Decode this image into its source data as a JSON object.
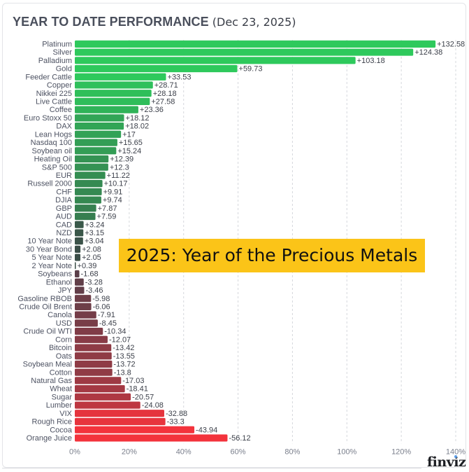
{
  "header": {
    "title": "YEAR TO DATE PERFORMANCE",
    "date": "(Dec 23, 2025)"
  },
  "banner": {
    "text": "2025: Year of the Precious Metals",
    "color": "#fbc418"
  },
  "branding": {
    "logo": "finviz"
  },
  "colors": {
    "positive_strong": "#2ec95c",
    "positive_weak": "#3b4e48",
    "negative_weak": "#5b3f4a",
    "negative_strong": "#f3333c"
  },
  "chart_data": {
    "type": "bar",
    "orientation": "horizontal",
    "title": "YEAR TO DATE PERFORMANCE (Dec 23, 2025)",
    "xlabel": "",
    "ylabel": "",
    "xlim": [
      0,
      140
    ],
    "x_ticks": [
      "0%",
      "20%",
      "40%",
      "60%",
      "80%",
      "100%",
      "120%",
      "140%"
    ],
    "grid": "vertical dashed",
    "value_note": "bar length = absolute YTD % change; labels show signed value",
    "categories": [
      "Platinum",
      "Silver",
      "Palladium",
      "Gold",
      "Feeder Cattle",
      "Copper",
      "Nikkei 225",
      "Live Cattle",
      "Coffee",
      "Euro Stoxx 50",
      "DAX",
      "Lean Hogs",
      "Nasdaq 100",
      "Soybean oil",
      "Heating Oil",
      "S&P 500",
      "EUR",
      "Russell 2000",
      "CHF",
      "DJIA",
      "GBP",
      "AUD",
      "CAD",
      "NZD",
      "10 Year Note",
      "30 Year Bond",
      "5 Year Note",
      "2 Year Note",
      "Soybeans",
      "Ethanol",
      "JPY",
      "Gasoline RBOB",
      "Crude Oil Brent",
      "Canola",
      "USD",
      "Crude Oil WTI",
      "Corn",
      "Bitcoin",
      "Oats",
      "Soybean Meal",
      "Cotton",
      "Natural Gas",
      "Wheat",
      "Sugar",
      "Lumber",
      "VIX",
      "Rough Rice",
      "Cocoa",
      "Orange Juice"
    ],
    "values": [
      132.58,
      124.38,
      103.18,
      59.73,
      33.53,
      28.71,
      28.18,
      27.58,
      23.36,
      18.12,
      18.02,
      17,
      15.65,
      15.24,
      12.39,
      12.3,
      11.22,
      10.17,
      9.91,
      9.74,
      7.87,
      7.59,
      3.24,
      3.15,
      3.04,
      2.08,
      2.05,
      0.39,
      -1.68,
      -3.28,
      -3.46,
      -5.98,
      -6.06,
      -7.91,
      -8.45,
      -10.34,
      -12.07,
      -13.42,
      -13.55,
      -13.72,
      -13.8,
      -17.03,
      -18.41,
      -20.57,
      -24.08,
      -32.88,
      -33.3,
      -43.94,
      -56.12
    ],
    "labels": [
      "+132.58",
      "+124.38",
      "+103.18",
      "+59.73",
      "+33.53",
      "+28.71",
      "+28.18",
      "+27.58",
      "+23.36",
      "+18.12",
      "+18.02",
      "+17",
      "+15.65",
      "+15.24",
      "+12.39",
      "+12.3",
      "+11.22",
      "+10.17",
      "+9.91",
      "+9.74",
      "+7.87",
      "+7.59",
      "+3.24",
      "+3.15",
      "+3.04",
      "+2.08",
      "+2.05",
      "+0.39",
      "-1.68",
      "-3.28",
      "-3.46",
      "-5.98",
      "-6.06",
      "-7.91",
      "-8.45",
      "-10.34",
      "-12.07",
      "-13.42",
      "-13.55",
      "-13.72",
      "-13.8",
      "-17.03",
      "-18.41",
      "-20.57",
      "-24.08",
      "-32.88",
      "-33.3",
      "-43.94",
      "-56.12"
    ]
  }
}
